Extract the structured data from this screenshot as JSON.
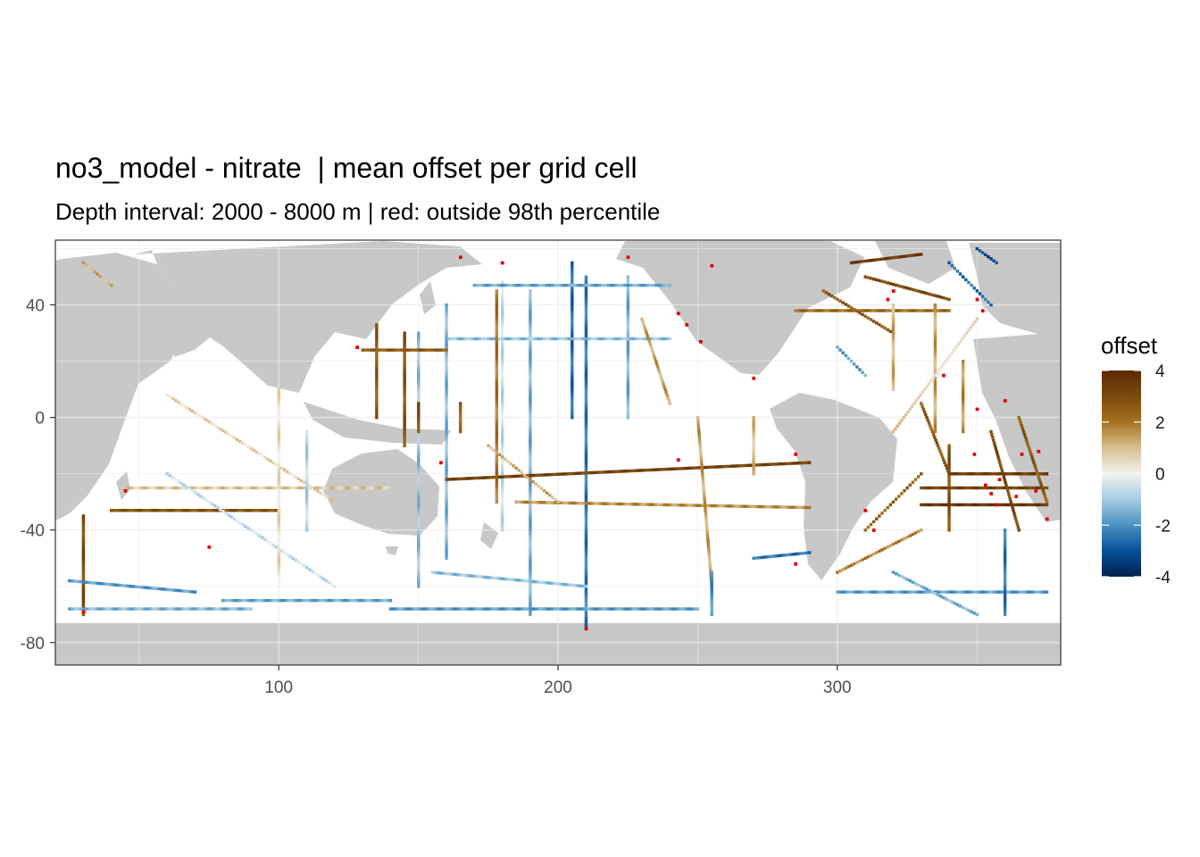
{
  "chart_data": {
    "type": "heatmap",
    "title": "no3_model - nitrate  | mean offset per grid cell",
    "subtitle": "Depth interval: 2000 - 8000 m | red: outside 98th percentile",
    "xlabel": "",
    "ylabel": "",
    "xlim": [
      20,
      380
    ],
    "ylim": [
      -88,
      63
    ],
    "x_ticks": [
      100,
      200,
      300
    ],
    "y_ticks": [
      40,
      0,
      -40,
      -80
    ],
    "grid": true,
    "legend": {
      "title": "offset",
      "placement": "right",
      "range": [
        -4,
        4
      ],
      "ticks": [
        4,
        2,
        0,
        -2,
        -4
      ],
      "colors": [
        "#00204d",
        "#08519c",
        "#4a90c2",
        "#a7cde3",
        "#f3f3f1",
        "#d8bf8f",
        "#a6711f",
        "#7a4a0e",
        "#5a2a00"
      ]
    },
    "colors": {
      "land": "#c8c8c8",
      "ocean": "#ffffff",
      "outlier": "#e00000",
      "grid": "#ebebeb",
      "panel_border": "#333333"
    },
    "tracks": [
      {
        "from": [
          30,
          55
        ],
        "to": [
          40,
          47
        ],
        "value": 1.2
      },
      {
        "from": [
          40,
          -33
        ],
        "to": [
          100,
          -33
        ],
        "value": 2.8
      },
      {
        "from": [
          30,
          -35
        ],
        "to": [
          30,
          -70
        ],
        "value": 3.0
      },
      {
        "from": [
          45,
          -25
        ],
        "to": [
          140,
          -25
        ],
        "value": 0.8
      },
      {
        "from": [
          60,
          -20
        ],
        "to": [
          120,
          -60
        ],
        "value": -0.6
      },
      {
        "from": [
          60,
          8
        ],
        "to": [
          120,
          -30
        ],
        "value": 0.6
      },
      {
        "from": [
          80,
          -65
        ],
        "to": [
          140,
          -65
        ],
        "value": -1.6
      },
      {
        "from": [
          100,
          10
        ],
        "to": [
          100,
          -60
        ],
        "value": 0.4
      },
      {
        "from": [
          110,
          -5
        ],
        "to": [
          110,
          -40
        ],
        "value": -0.8
      },
      {
        "from": [
          150,
          30
        ],
        "to": [
          150,
          -60
        ],
        "value": -1.2
      },
      {
        "from": [
          160,
          40
        ],
        "to": [
          160,
          -50
        ],
        "value": -1.4
      },
      {
        "from": [
          180,
          48
        ],
        "to": [
          180,
          -40
        ],
        "value": -0.6
      },
      {
        "from": [
          190,
          45
        ],
        "to": [
          190,
          -70
        ],
        "value": -1.5
      },
      {
        "from": [
          205,
          55
        ],
        "to": [
          205,
          0
        ],
        "value": -2.6
      },
      {
        "from": [
          210,
          50
        ],
        "to": [
          210,
          -75
        ],
        "value": -2.4
      },
      {
        "from": [
          225,
          50
        ],
        "to": [
          225,
          0
        ],
        "value": -1.5
      },
      {
        "from": [
          160,
          28
        ],
        "to": [
          240,
          28
        ],
        "value": -1.2
      },
      {
        "from": [
          170,
          47
        ],
        "to": [
          240,
          47
        ],
        "value": -1.6
      },
      {
        "from": [
          130,
          24
        ],
        "to": [
          160,
          24
        ],
        "value": 2.6
      },
      {
        "from": [
          135,
          33
        ],
        "to": [
          135,
          0
        ],
        "value": 2.6
      },
      {
        "from": [
          145,
          30
        ],
        "to": [
          145,
          -10
        ],
        "value": 2.8
      },
      {
        "from": [
          150,
          -5
        ],
        "to": [
          150,
          5
        ],
        "value": 2.8
      },
      {
        "from": [
          165,
          5
        ],
        "to": [
          165,
          -5
        ],
        "value": 2.4
      },
      {
        "from": [
          160,
          -22
        ],
        "to": [
          290,
          -16
        ],
        "value": 3.2
      },
      {
        "from": [
          185,
          -30
        ],
        "to": [
          290,
          -32
        ],
        "value": 1.6
      },
      {
        "from": [
          178,
          45
        ],
        "to": [
          178,
          -30
        ],
        "value": 2.0
      },
      {
        "from": [
          175,
          -10
        ],
        "to": [
          200,
          -30
        ],
        "value": 1.2
      },
      {
        "from": [
          230,
          35
        ],
        "to": [
          240,
          5
        ],
        "value": 1.4
      },
      {
        "from": [
          250,
          0
        ],
        "to": [
          255,
          -60
        ],
        "value": 1.4
      },
      {
        "from": [
          255,
          -55
        ],
        "to": [
          255,
          -70
        ],
        "value": -2.0
      },
      {
        "from": [
          270,
          0
        ],
        "to": [
          270,
          -20
        ],
        "value": 1.0
      },
      {
        "from": [
          155,
          -55
        ],
        "to": [
          210,
          -60
        ],
        "value": -1.2
      },
      {
        "from": [
          140,
          -68
        ],
        "to": [
          250,
          -68
        ],
        "value": -1.8
      },
      {
        "from": [
          270,
          -50
        ],
        "to": [
          290,
          -48
        ],
        "value": -2.4
      },
      {
        "from": [
          285,
          38
        ],
        "to": [
          340,
          38
        ],
        "value": 2.2
      },
      {
        "from": [
          295,
          45
        ],
        "to": [
          320,
          30
        ],
        "value": 2.6
      },
      {
        "from": [
          305,
          55
        ],
        "to": [
          330,
          58
        ],
        "value": 3.4
      },
      {
        "from": [
          310,
          50
        ],
        "to": [
          340,
          42
        ],
        "value": 3.0
      },
      {
        "from": [
          320,
          40
        ],
        "to": [
          320,
          10
        ],
        "value": 1.2
      },
      {
        "from": [
          335,
          40
        ],
        "to": [
          335,
          -5
        ],
        "value": 1.4
      },
      {
        "from": [
          330,
          5
        ],
        "to": [
          340,
          -20
        ],
        "value": 2.6
      },
      {
        "from": [
          340,
          -10
        ],
        "to": [
          340,
          -40
        ],
        "value": 2.8
      },
      {
        "from": [
          345,
          20
        ],
        "to": [
          345,
          -5
        ],
        "value": 1.6
      },
      {
        "from": [
          340,
          55
        ],
        "to": [
          355,
          40
        ],
        "value": -2.6
      },
      {
        "from": [
          350,
          60
        ],
        "to": [
          357,
          55
        ],
        "value": -3.2
      },
      {
        "from": [
          350,
          35
        ],
        "to": [
          320,
          -5
        ],
        "value": 0.8
      },
      {
        "from": [
          340,
          -20
        ],
        "to": [
          375,
          -20
        ],
        "value": 3.4
      },
      {
        "from": [
          330,
          -25
        ],
        "to": [
          375,
          -25
        ],
        "value": 3.2
      },
      {
        "from": [
          330,
          -31
        ],
        "to": [
          375,
          -31
        ],
        "value": 3.6
      },
      {
        "from": [
          355,
          -5
        ],
        "to": [
          365,
          -40
        ],
        "value": 3.0
      },
      {
        "from": [
          365,
          0
        ],
        "to": [
          375,
          -30
        ],
        "value": 2.6
      },
      {
        "from": [
          310,
          -40
        ],
        "to": [
          330,
          -20
        ],
        "value": 2.4
      },
      {
        "from": [
          300,
          -55
        ],
        "to": [
          330,
          -40
        ],
        "value": 1.8
      },
      {
        "from": [
          300,
          -62
        ],
        "to": [
          375,
          -62
        ],
        "value": -1.8
      },
      {
        "from": [
          360,
          -40
        ],
        "to": [
          360,
          -70
        ],
        "value": -2.4
      },
      {
        "from": [
          320,
          -55
        ],
        "to": [
          350,
          -70
        ],
        "value": -1.5
      },
      {
        "from": [
          25,
          -58
        ],
        "to": [
          70,
          -62
        ],
        "value": -1.8
      },
      {
        "from": [
          25,
          -68
        ],
        "to": [
          90,
          -68
        ],
        "value": -1.4
      },
      {
        "from": [
          300,
          25
        ],
        "to": [
          310,
          15
        ],
        "value": -1.8
      }
    ],
    "outliers": [
      {
        "x": 165,
        "y": 57,
        "value": 4.6
      },
      {
        "x": 225,
        "y": 57,
        "value": 4.6
      },
      {
        "x": 255,
        "y": 54,
        "value": 4.8
      },
      {
        "x": 243,
        "y": 37,
        "value": 4.7
      },
      {
        "x": 246,
        "y": 33,
        "value": 4.6
      },
      {
        "x": 251,
        "y": 27,
        "value": 4.8
      },
      {
        "x": 128,
        "y": 25,
        "value": 4.5
      },
      {
        "x": 158,
        "y": -16,
        "value": 4.6
      },
      {
        "x": 243,
        "y": -15,
        "value": 4.7
      },
      {
        "x": 285,
        "y": -13,
        "value": 4.6
      },
      {
        "x": 210,
        "y": -75,
        "value": -4.6
      },
      {
        "x": 30,
        "y": -69,
        "value": -4.8
      },
      {
        "x": 270,
        "y": 14,
        "value": 4.5
      },
      {
        "x": 338,
        "y": 15,
        "value": 4.6
      },
      {
        "x": 350,
        "y": 3,
        "value": 4.8
      },
      {
        "x": 360,
        "y": 6,
        "value": 4.7
      },
      {
        "x": 349,
        "y": -13,
        "value": 4.9
      },
      {
        "x": 353,
        "y": -24,
        "value": 5.1
      },
      {
        "x": 358,
        "y": -22,
        "value": 4.8
      },
      {
        "x": 364,
        "y": -28,
        "value": 5.2
      },
      {
        "x": 371,
        "y": -26,
        "value": 4.8
      },
      {
        "x": 357,
        "y": -31,
        "value": 5.0
      },
      {
        "x": 366,
        "y": -13,
        "value": 4.8
      },
      {
        "x": 372,
        "y": -12,
        "value": 4.6
      },
      {
        "x": 355,
        "y": -27,
        "value": 4.9
      },
      {
        "x": 375,
        "y": -36,
        "value": 4.7
      },
      {
        "x": 350,
        "y": 42,
        "value": -4.5
      },
      {
        "x": 352,
        "y": 38,
        "value": -4.6
      },
      {
        "x": 45,
        "y": -26,
        "value": 4.6
      },
      {
        "x": 75,
        "y": -46,
        "value": 4.5
      },
      {
        "x": 310,
        "y": -33,
        "value": 4.6
      },
      {
        "x": 313,
        "y": -40,
        "value": 4.6
      },
      {
        "x": 285,
        "y": -52,
        "value": -4.6
      },
      {
        "x": 318,
        "y": 42,
        "value": 4.5
      },
      {
        "x": 180,
        "y": 55,
        "value": 4.5
      },
      {
        "x": 320,
        "y": 45,
        "value": 4.6
      }
    ]
  }
}
